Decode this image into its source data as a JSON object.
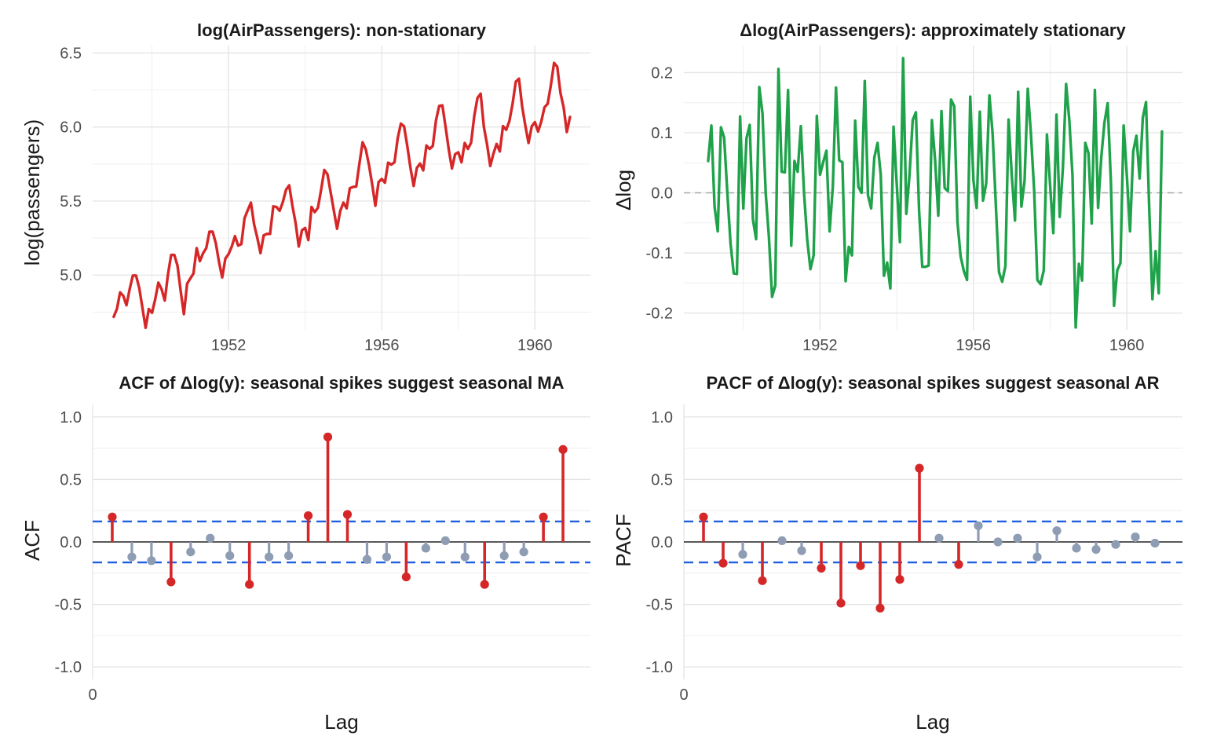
{
  "colors": {
    "level_line": "#d62728",
    "diff_line": "#1fa24a",
    "significant": "#d62728",
    "insignificant": "#8e9db3",
    "bound": "#1f5fe0",
    "zero_dash": "#a8a8a8"
  },
  "chart_data": [
    {
      "type": "line",
      "title": "log(AirPassengers): non-stationary",
      "xlabel": "",
      "ylabel": "log(passengers)",
      "xlim": [
        1948.45,
        1961.45
      ],
      "ylim": [
        4.63,
        6.55
      ],
      "x_ticks": [
        1952,
        1956,
        1960
      ],
      "x_tick_labels": [
        "1952",
        "1956",
        "1960"
      ],
      "y_ticks": [
        5.0,
        5.5,
        6.0,
        6.5
      ],
      "y_tick_labels": [
        "5.0",
        "5.5",
        "6.0",
        "6.5"
      ],
      "grid": true,
      "start": 1949,
      "frequency": 12,
      "values": [
        4.718,
        4.771,
        4.883,
        4.86,
        4.796,
        4.905,
        4.997,
        4.997,
        4.913,
        4.779,
        4.644,
        4.771,
        4.745,
        4.836,
        4.949,
        4.905,
        4.828,
        5.004,
        5.136,
        5.136,
        5.063,
        4.89,
        4.736,
        4.942,
        4.977,
        5.011,
        5.182,
        5.094,
        5.147,
        5.182,
        5.293,
        5.293,
        5.215,
        5.088,
        4.984,
        5.112,
        5.142,
        5.193,
        5.263,
        5.199,
        5.209,
        5.384,
        5.438,
        5.489,
        5.342,
        5.252,
        5.148,
        5.268,
        5.278,
        5.278,
        5.464,
        5.46,
        5.434,
        5.493,
        5.576,
        5.606,
        5.468,
        5.352,
        5.193,
        5.303,
        5.318,
        5.236,
        5.46,
        5.425,
        5.455,
        5.576,
        5.71,
        5.68,
        5.557,
        5.434,
        5.313,
        5.434,
        5.489,
        5.451,
        5.587,
        5.595,
        5.598,
        5.753,
        5.897,
        5.849,
        5.743,
        5.613,
        5.468,
        5.628,
        5.649,
        5.624,
        5.759,
        5.746,
        5.762,
        5.924,
        6.023,
        6.004,
        5.872,
        5.724,
        5.602,
        5.724,
        5.753,
        5.707,
        5.875,
        5.852,
        5.872,
        6.045,
        6.142,
        6.146,
        6.001,
        5.849,
        5.72,
        5.817,
        5.829,
        5.762,
        5.892,
        5.852,
        5.894,
        6.075,
        6.196,
        6.225,
        6.001,
        5.883,
        5.737,
        5.82,
        5.886,
        5.835,
        6.006,
        5.981,
        6.04,
        6.157,
        6.306,
        6.326,
        6.138,
        6.009,
        5.892,
        6.004,
        6.033,
        5.969,
        6.038,
        6.133,
        6.157,
        6.282,
        6.433,
        6.407,
        6.23,
        6.133,
        5.966,
        6.068
      ]
    },
    {
      "type": "line",
      "title": "Δlog(AirPassengers): approximately stationary",
      "xlabel": "",
      "ylabel": "Δlog",
      "xlim": [
        1948.45,
        1961.45
      ],
      "ylim": [
        -0.228,
        0.245
      ],
      "x_ticks": [
        1952,
        1956,
        1960
      ],
      "x_tick_labels": [
        "1952",
        "1956",
        "1960"
      ],
      "y_ticks": [
        -0.2,
        -0.1,
        0.0,
        0.1,
        0.2
      ],
      "y_tick_labels": [
        "-0.2",
        "-0.1",
        "0.0",
        "0.1",
        "0.2"
      ],
      "zero_line": true,
      "grid": true,
      "derived_from": "first difference of the log series"
    },
    {
      "type": "stem",
      "title": "ACF of Δlog(y): seasonal spikes suggest seasonal MA",
      "xlabel": "Lag",
      "ylabel": "ACF",
      "xlim": [
        0,
        25.4
      ],
      "ylim": [
        -1.1,
        1.1
      ],
      "x_ticks": [
        0
      ],
      "x_tick_labels": [
        "0"
      ],
      "y_ticks": [
        -1.0,
        -0.5,
        0.0,
        0.5,
        1.0
      ],
      "y_tick_labels": [
        "-1.0",
        "-0.5",
        "0.0",
        "0.5",
        "1.0"
      ],
      "conf_bound": 0.164,
      "grid": true,
      "lags": [
        1,
        2,
        3,
        4,
        5,
        6,
        7,
        8,
        9,
        10,
        11,
        12,
        13,
        14,
        15,
        16,
        17,
        18,
        19,
        20,
        21,
        22,
        23,
        24
      ],
      "values": [
        0.2,
        -0.12,
        -0.15,
        -0.32,
        -0.08,
        0.03,
        -0.11,
        -0.34,
        -0.12,
        -0.11,
        0.21,
        0.84,
        0.22,
        -0.14,
        -0.12,
        -0.28,
        -0.05,
        0.01,
        -0.12,
        -0.34,
        -0.11,
        -0.08,
        0.2,
        0.74
      ]
    },
    {
      "type": "stem",
      "title": "PACF of Δlog(y): seasonal spikes suggest seasonal AR",
      "xlabel": "Lag",
      "ylabel": "PACF",
      "xlim": [
        0,
        25.4
      ],
      "ylim": [
        -1.1,
        1.1
      ],
      "x_ticks": [
        0
      ],
      "x_tick_labels": [
        "0"
      ],
      "y_ticks": [
        -1.0,
        -0.5,
        0.0,
        0.5,
        1.0
      ],
      "y_tick_labels": [
        "-1.0",
        "-0.5",
        "0.0",
        "0.5",
        "1.0"
      ],
      "conf_bound": 0.164,
      "grid": true,
      "lags": [
        1,
        2,
        3,
        4,
        5,
        6,
        7,
        8,
        9,
        10,
        11,
        12,
        13,
        14,
        15,
        16,
        17,
        18,
        19,
        20,
        21,
        22,
        23,
        24
      ],
      "values": [
        0.2,
        -0.17,
        -0.1,
        -0.31,
        0.01,
        -0.07,
        -0.21,
        -0.49,
        -0.19,
        -0.53,
        -0.3,
        0.59,
        0.03,
        -0.18,
        0.13,
        0.0,
        0.03,
        -0.12,
        0.09,
        -0.05,
        -0.06,
        -0.02,
        0.04,
        -0.01
      ]
    }
  ]
}
